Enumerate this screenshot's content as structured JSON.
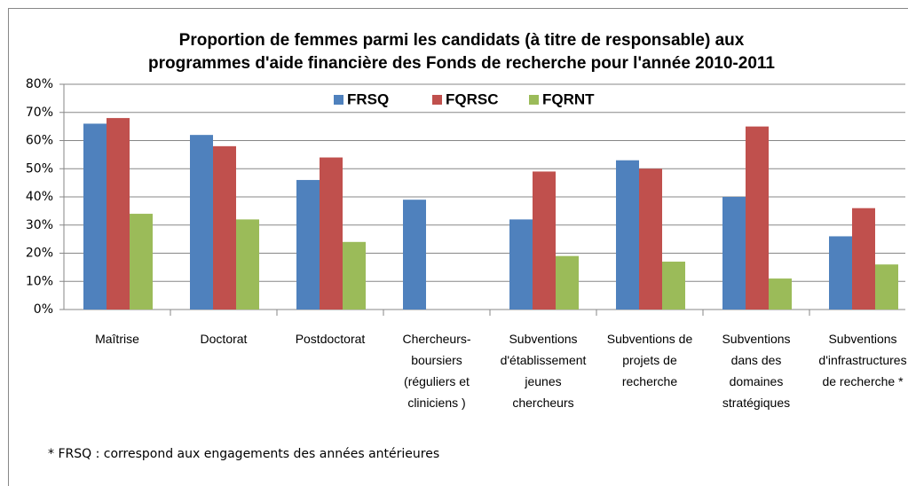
{
  "chart_data": {
    "type": "bar",
    "title": [
      "Proportion de femmes parmi les candidats (à titre de responsable) aux",
      "programmes d'aide financière des Fonds de recherche pour l'année 2010-2011"
    ],
    "categories": [
      "Maîtrise",
      "Doctorat",
      "Postdoctorat",
      "Chercheurs-\nboursiers\n(réguliers et\ncliniciens )",
      "Subventions\nd'établissement\njeunes\nchercheurs",
      "Subventions de\nprojets de\nrecherche",
      "Subventions\ndans des\ndomaines\nstratégiques",
      "Subventions\nd'infrastructures\nde recherche *"
    ],
    "series": [
      {
        "name": "FRSQ",
        "color": "#4f81bd",
        "values": [
          66,
          62,
          46,
          39,
          32,
          53,
          40,
          26
        ]
      },
      {
        "name": "FQRSC",
        "color": "#c0504d",
        "values": [
          68,
          58,
          54,
          null,
          49,
          50,
          65,
          36
        ]
      },
      {
        "name": "FQRNT",
        "color": "#9bbb59",
        "values": [
          34,
          32,
          24,
          null,
          19,
          17,
          11,
          16
        ]
      }
    ],
    "ylim": [
      0,
      80
    ],
    "yticks": [
      {
        "value": 0,
        "label": "0%"
      },
      {
        "value": 10,
        "label": "10%"
      },
      {
        "value": 20,
        "label": "20%"
      },
      {
        "value": 30,
        "label": "30%"
      },
      {
        "value": 40,
        "label": "40%"
      },
      {
        "value": 50,
        "label": "50%"
      },
      {
        "value": 60,
        "label": "60%"
      },
      {
        "value": 70,
        "label": "70%"
      },
      {
        "value": 80,
        "label": "80%"
      }
    ],
    "grid": true,
    "legend": "top",
    "footnote": "* FRSQ : correspond aux engagements des années antérieures"
  }
}
